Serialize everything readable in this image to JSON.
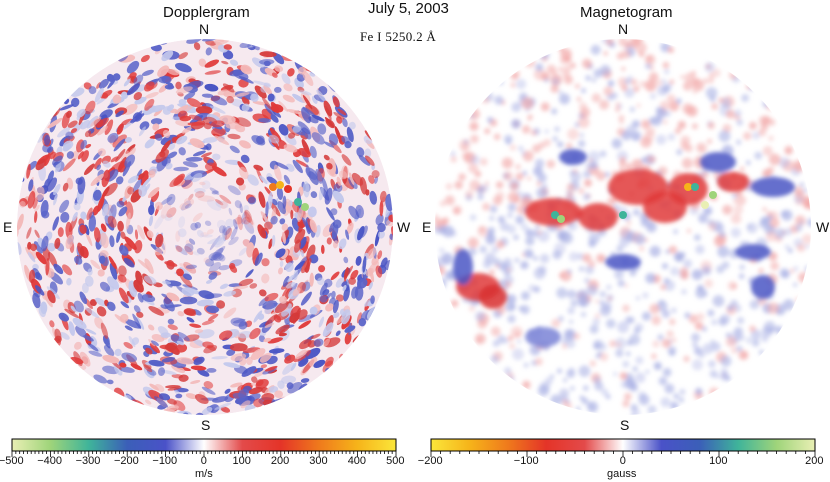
{
  "header": {
    "date": "July 5, 2003",
    "line": "Fe I  5250.2 Å"
  },
  "panels": [
    {
      "title": "Dopplergram",
      "north": "N",
      "south": "S",
      "east": "E",
      "west": "W",
      "colorbar": {
        "ticks": [
          "−500",
          "−400",
          "−300",
          "−200",
          "−100",
          "0",
          "100",
          "200",
          "300",
          "400",
          "500"
        ],
        "unit": "m/s",
        "colors": [
          "#e9efb4",
          "#9fd47a",
          "#3fb49a",
          "#3b5fb8",
          "#4a52c8",
          "#ffffff",
          "#e34a4a",
          "#e43428",
          "#ef7a1c",
          "#f6b41a",
          "#fbe63a"
        ]
      }
    },
    {
      "title": "Magnetogram",
      "north": "N",
      "south": "S",
      "east": "E",
      "west": "W",
      "colorbar": {
        "ticks": [
          "−200",
          "−100",
          "0",
          "100",
          "200"
        ],
        "unit": "gauss",
        "colors": [
          "#fbe63a",
          "#f6b41a",
          "#ef7a1c",
          "#e43428",
          "#e34a4a",
          "#ffffff",
          "#4a52c8",
          "#3b5fb8",
          "#3fb49a",
          "#9fd47a",
          "#e9efb4"
        ]
      }
    }
  ],
  "colors": {
    "red": "#e03a3a",
    "blue": "#4a55c4",
    "pink": "#f3b9b9",
    "lightblue": "#c3c8ec"
  }
}
